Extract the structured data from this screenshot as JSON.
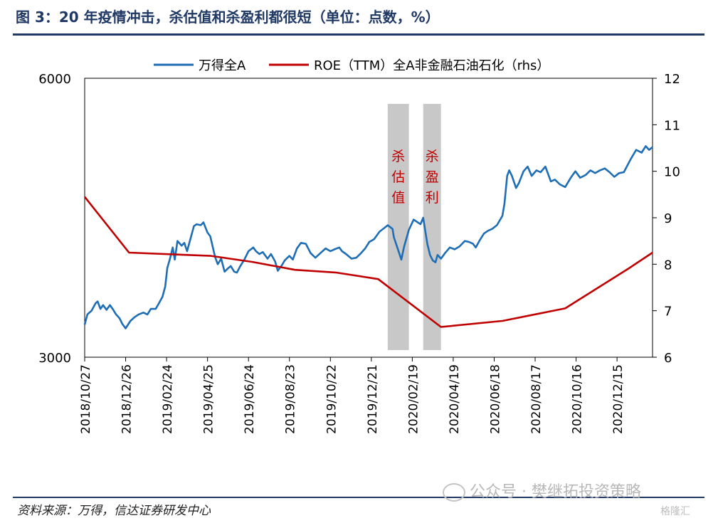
{
  "figure": {
    "title": "图 3：20 年疫情冲击，杀估值和杀盈利都很短（单位：点数，%）",
    "source": "资料来源：万得，信达证券研发中心",
    "watermark": "公众号 · 樊继拓投资策略",
    "watermark_corner": "格隆汇"
  },
  "chart_data": {
    "type": "line",
    "legend": {
      "placement": "top",
      "entries": [
        "万得全A",
        "ROE（TTM）全A非金融石油石化（rhs）"
      ]
    },
    "colors": {
      "wind_a": "#1f6eb5",
      "roe": "#c00000",
      "shade": "#c8c8c8",
      "annotation": "#c00000",
      "axis": "#000000"
    },
    "y_left": {
      "range": [
        3000,
        6000
      ],
      "ticks": [
        "6000",
        "3000"
      ]
    },
    "y_right": {
      "range": [
        6,
        12
      ],
      "ticks": [
        "12",
        "11",
        "10",
        "9",
        "8",
        "7",
        "6"
      ]
    },
    "x_ticks": [
      "2018/10/27",
      "2018/12/26",
      "2019/02/24",
      "2019/04/25",
      "2019/06/24",
      "2019/08/23",
      "2019/10/22",
      "2019/12/21",
      "2020/02/19",
      "2020/04/19",
      "2020/06/18",
      "2020/08/17",
      "2020/10/16",
      "2020/12/15"
    ],
    "shaded_periods": [
      {
        "label": "杀估值",
        "start": "2020-01-14",
        "end": "2020-02-14"
      },
      {
        "label": "杀盈利",
        "start": "2020-03-06",
        "end": "2020-04-01"
      }
    ],
    "series": [
      {
        "name": "万得全A",
        "axis": "left",
        "points": [
          [
            "2018-10-27",
            3350
          ],
          [
            "2018-10-31",
            3460
          ],
          [
            "2018-11-06",
            3500
          ],
          [
            "2018-11-12",
            3580
          ],
          [
            "2018-11-15",
            3600
          ],
          [
            "2018-11-19",
            3520
          ],
          [
            "2018-11-23",
            3560
          ],
          [
            "2018-11-28",
            3510
          ],
          [
            "2018-12-03",
            3560
          ],
          [
            "2018-12-07",
            3520
          ],
          [
            "2018-12-12",
            3460
          ],
          [
            "2018-12-17",
            3420
          ],
          [
            "2018-12-21",
            3360
          ],
          [
            "2018-12-26",
            3310
          ],
          [
            "2019-01-02",
            3390
          ],
          [
            "2019-01-08",
            3430
          ],
          [
            "2019-01-14",
            3460
          ],
          [
            "2019-01-21",
            3480
          ],
          [
            "2019-01-27",
            3460
          ],
          [
            "2019-02-01",
            3520
          ],
          [
            "2019-02-08",
            3520
          ],
          [
            "2019-02-12",
            3570
          ],
          [
            "2019-02-18",
            3650
          ],
          [
            "2019-02-22",
            3760
          ],
          [
            "2019-02-25",
            3960
          ],
          [
            "2019-03-01",
            4060
          ],
          [
            "2019-03-05",
            4180
          ],
          [
            "2019-03-08",
            4050
          ],
          [
            "2019-03-12",
            4250
          ],
          [
            "2019-03-18",
            4200
          ],
          [
            "2019-03-22",
            4230
          ],
          [
            "2019-03-26",
            4140
          ],
          [
            "2019-04-01",
            4300
          ],
          [
            "2019-04-05",
            4410
          ],
          [
            "2019-04-09",
            4430
          ],
          [
            "2019-04-15",
            4420
          ],
          [
            "2019-04-19",
            4450
          ],
          [
            "2019-04-25",
            4340
          ],
          [
            "2019-04-29",
            4300
          ],
          [
            "2019-05-06",
            4080
          ],
          [
            "2019-05-10",
            4000
          ],
          [
            "2019-05-15",
            4060
          ],
          [
            "2019-05-20",
            3920
          ],
          [
            "2019-05-24",
            3950
          ],
          [
            "2019-05-29",
            3980
          ],
          [
            "2019-06-03",
            3920
          ],
          [
            "2019-06-07",
            3910
          ],
          [
            "2019-06-12",
            3980
          ],
          [
            "2019-06-18",
            4050
          ],
          [
            "2019-06-24",
            4140
          ],
          [
            "2019-07-01",
            4180
          ],
          [
            "2019-07-05",
            4140
          ],
          [
            "2019-07-10",
            4110
          ],
          [
            "2019-07-15",
            4130
          ],
          [
            "2019-07-22",
            4060
          ],
          [
            "2019-07-27",
            4110
          ],
          [
            "2019-08-02",
            4030
          ],
          [
            "2019-08-06",
            3930
          ],
          [
            "2019-08-12",
            3990
          ],
          [
            "2019-08-16",
            4040
          ],
          [
            "2019-08-23",
            4090
          ],
          [
            "2019-08-28",
            4050
          ],
          [
            "2019-09-03",
            4170
          ],
          [
            "2019-09-09",
            4230
          ],
          [
            "2019-09-16",
            4220
          ],
          [
            "2019-09-23",
            4120
          ],
          [
            "2019-09-30",
            4070
          ],
          [
            "2019-10-09",
            4130
          ],
          [
            "2019-10-15",
            4170
          ],
          [
            "2019-10-22",
            4140
          ],
          [
            "2019-10-28",
            4160
          ],
          [
            "2019-11-04",
            4180
          ],
          [
            "2019-11-08",
            4140
          ],
          [
            "2019-11-14",
            4110
          ],
          [
            "2019-11-22",
            4060
          ],
          [
            "2019-11-29",
            4070
          ],
          [
            "2019-12-06",
            4120
          ],
          [
            "2019-12-12",
            4170
          ],
          [
            "2019-12-18",
            4240
          ],
          [
            "2019-12-25",
            4270
          ],
          [
            "2020-01-02",
            4350
          ],
          [
            "2020-01-09",
            4390
          ],
          [
            "2020-01-14",
            4420
          ],
          [
            "2020-01-21",
            4380
          ],
          [
            "2020-01-23",
            4290
          ],
          [
            "2020-02-03",
            4050
          ],
          [
            "2020-02-07",
            4190
          ],
          [
            "2020-02-14",
            4370
          ],
          [
            "2020-02-21",
            4480
          ],
          [
            "2020-02-25",
            4460
          ],
          [
            "2020-03-02",
            4430
          ],
          [
            "2020-03-06",
            4500
          ],
          [
            "2020-03-12",
            4220
          ],
          [
            "2020-03-16",
            4100
          ],
          [
            "2020-03-20",
            4040
          ],
          [
            "2020-03-24",
            4020
          ],
          [
            "2020-03-27",
            4100
          ],
          [
            "2020-04-01",
            4060
          ],
          [
            "2020-04-07",
            4120
          ],
          [
            "2020-04-14",
            4180
          ],
          [
            "2020-04-21",
            4160
          ],
          [
            "2020-04-28",
            4190
          ],
          [
            "2020-05-06",
            4250
          ],
          [
            "2020-05-12",
            4240
          ],
          [
            "2020-05-18",
            4220
          ],
          [
            "2020-05-22",
            4180
          ],
          [
            "2020-05-28",
            4260
          ],
          [
            "2020-06-03",
            4330
          ],
          [
            "2020-06-09",
            4360
          ],
          [
            "2020-06-15",
            4380
          ],
          [
            "2020-06-22",
            4420
          ],
          [
            "2020-06-30",
            4520
          ],
          [
            "2020-07-03",
            4650
          ],
          [
            "2020-07-07",
            4950
          ],
          [
            "2020-07-10",
            5010
          ],
          [
            "2020-07-14",
            4950
          ],
          [
            "2020-07-20",
            4820
          ],
          [
            "2020-07-24",
            4870
          ],
          [
            "2020-07-31",
            5000
          ],
          [
            "2020-08-06",
            5050
          ],
          [
            "2020-08-12",
            4950
          ],
          [
            "2020-08-19",
            5010
          ],
          [
            "2020-08-25",
            4990
          ],
          [
            "2020-09-01",
            5050
          ],
          [
            "2020-09-09",
            4890
          ],
          [
            "2020-09-15",
            4910
          ],
          [
            "2020-09-22",
            4860
          ],
          [
            "2020-09-30",
            4830
          ],
          [
            "2020-10-09",
            4940
          ],
          [
            "2020-10-15",
            5000
          ],
          [
            "2020-10-22",
            4930
          ],
          [
            "2020-10-30",
            4960
          ],
          [
            "2020-11-06",
            5010
          ],
          [
            "2020-11-13",
            4980
          ],
          [
            "2020-11-20",
            5010
          ],
          [
            "2020-11-27",
            5030
          ],
          [
            "2020-12-04",
            4990
          ],
          [
            "2020-12-11",
            4940
          ],
          [
            "2020-12-18",
            4980
          ],
          [
            "2020-12-25",
            4990
          ],
          [
            "2021-01-04",
            5130
          ],
          [
            "2021-01-12",
            5230
          ],
          [
            "2021-01-20",
            5200
          ],
          [
            "2021-01-26",
            5270
          ],
          [
            "2021-01-31",
            5230
          ],
          [
            "2021-02-05",
            5260
          ]
        ]
      },
      {
        "name": "ROE（TTM）全A非金融石油石化（rhs）",
        "axis": "right",
        "points": [
          [
            "2018-10-27",
            9.45
          ],
          [
            "2018-12-31",
            8.25
          ],
          [
            "2019-04-30",
            8.18
          ],
          [
            "2019-06-30",
            8.05
          ],
          [
            "2019-08-31",
            7.88
          ],
          [
            "2019-10-31",
            7.82
          ],
          [
            "2019-12-31",
            7.68
          ],
          [
            "2020-04-01",
            6.65
          ],
          [
            "2020-06-30",
            6.78
          ],
          [
            "2020-09-30",
            7.05
          ],
          [
            "2020-12-31",
            7.9
          ],
          [
            "2021-02-05",
            8.25
          ]
        ]
      }
    ]
  }
}
